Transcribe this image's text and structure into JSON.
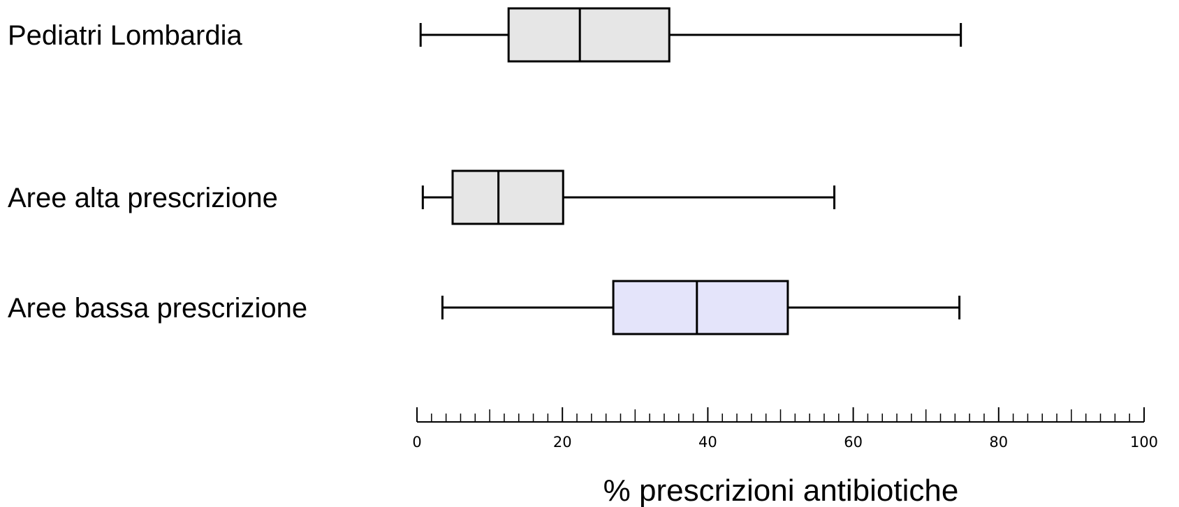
{
  "chart_data": {
    "type": "boxplot",
    "orientation": "horizontal",
    "title": "",
    "xlabel": "% prescrizioni antibiotiche",
    "ylabel": "",
    "xlim": [
      0,
      100
    ],
    "x_major_ticks": [
      0,
      20,
      40,
      60,
      80,
      100
    ],
    "x_tick_labels": [
      "0",
      "20",
      "40",
      "60",
      "80",
      "100"
    ],
    "x_minor_tick_step": 2,
    "grid": false,
    "legend": "none",
    "series": [
      {
        "category": "Pediatri Lombardia",
        "min": 0.5,
        "q1": 12.6,
        "median": 22.4,
        "q3": 34.7,
        "max": 74.8,
        "color": "#e6e6e6"
      },
      {
        "category": "Aree alta prescrizione",
        "min": 0.8,
        "q1": 4.9,
        "median": 11.2,
        "q3": 20.1,
        "max": 57.4,
        "color": "#e6e6e6"
      },
      {
        "category": "Aree bassa prescrizione",
        "min": 3.5,
        "q1": 27.0,
        "median": 38.5,
        "q3": 51.0,
        "max": 74.6,
        "color": "#e4e4fa"
      }
    ]
  }
}
